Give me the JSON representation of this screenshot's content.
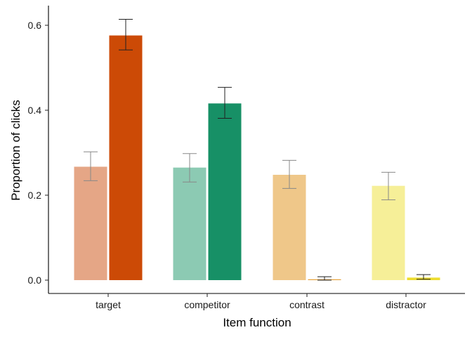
{
  "chart_data": {
    "type": "bar",
    "xlabel": "Item function",
    "ylabel": "Proportion of clicks",
    "ylim": [
      0,
      0.6
    ],
    "yticks": [
      0.0,
      0.2,
      0.4,
      0.6
    ],
    "ytick_labels": [
      "0.0",
      "0.2",
      "0.4",
      "0.6"
    ],
    "grid": false,
    "legend": "none",
    "categories": [
      "target",
      "competitor",
      "contrast",
      "distractor"
    ],
    "series": [
      {
        "values": [
          0.267,
          0.265,
          0.248,
          0.222
        ],
        "error_low": [
          0.234,
          0.231,
          0.216,
          0.189
        ],
        "error_high": [
          0.302,
          0.298,
          0.282,
          0.254
        ]
      },
      {
        "values": [
          0.576,
          0.416,
          0.002,
          0.006
        ],
        "error_low": [
          0.542,
          0.381,
          0.0,
          0.002
        ],
        "error_high": [
          0.614,
          0.454,
          0.008,
          0.013
        ]
      }
    ],
    "colors": {
      "target": [
        "#e5a686",
        "#cc4a06"
      ],
      "competitor": [
        "#8ccab3",
        "#179066"
      ],
      "contrast": [
        "#efc789",
        "#e6a23c"
      ],
      "distractor": [
        "#f6ef98",
        "#ecdc2e"
      ]
    },
    "error_bar_colors": [
      "#888888",
      "#222222"
    ]
  }
}
